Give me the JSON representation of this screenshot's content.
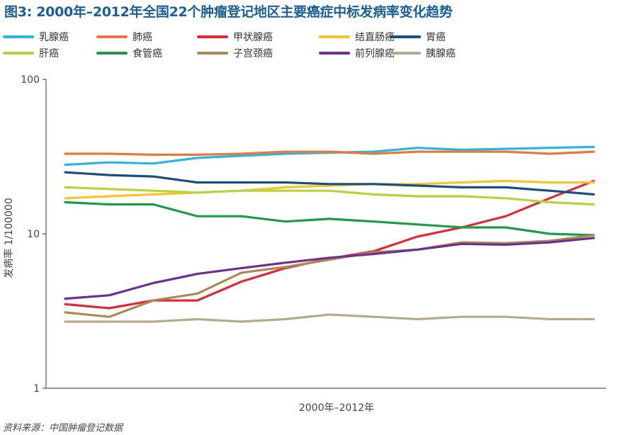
{
  "chart_data": {
    "type": "line",
    "title": "图3: 2000年–2012年全国22个肿瘤登记地区主要癌症中标发病率变化趋势",
    "xlabel": "2000年–2012年",
    "ylabel": "发病率   1/100000",
    "y_scale": "log",
    "ylim": [
      1,
      100
    ],
    "y_ticks": [
      "1",
      "10",
      "100"
    ],
    "x": [
      2000,
      2001,
      2002,
      2003,
      2004,
      2005,
      2006,
      2007,
      2008,
      2009,
      2010,
      2011,
      2012
    ],
    "grid": false,
    "legend_position": "top",
    "source": "资料来源：中国肿瘤登记数据",
    "series": [
      {
        "name": "乳腺癌",
        "color": "#2cb5e3",
        "values": [
          28.0,
          29.0,
          28.5,
          31.0,
          32.0,
          33.0,
          33.5,
          34.0,
          36.0,
          35.0,
          35.5,
          36.0,
          36.5
        ]
      },
      {
        "name": "肺癌",
        "color": "#e8793c",
        "values": [
          33.0,
          33.0,
          32.5,
          32.5,
          33.0,
          34.0,
          34.0,
          33.0,
          34.0,
          34.0,
          34.0,
          33.0,
          34.0
        ]
      },
      {
        "name": "甲状腺癌",
        "color": "#dd2a3a",
        "values": [
          3.5,
          3.3,
          3.7,
          3.7,
          4.9,
          6.0,
          6.9,
          7.7,
          9.6,
          11.0,
          13.0,
          17.0,
          22.0
        ]
      },
      {
        "name": "结直肠癌",
        "color": "#f5c52c",
        "values": [
          17.0,
          17.5,
          18.0,
          18.5,
          19.0,
          20.0,
          20.5,
          21.0,
          21.0,
          21.5,
          22.0,
          21.5,
          21.5
        ]
      },
      {
        "name": "胃癌",
        "color": "#1b4e7e",
        "values": [
          25.0,
          24.0,
          23.5,
          21.5,
          21.5,
          21.5,
          21.0,
          21.0,
          20.5,
          20.0,
          20.0,
          19.0,
          18.0
        ]
      },
      {
        "name": "肝癌",
        "color": "#b8d33a",
        "values": [
          20.0,
          19.5,
          19.0,
          18.5,
          19.0,
          19.0,
          19.0,
          18.0,
          17.5,
          17.5,
          17.0,
          16.0,
          15.5
        ]
      },
      {
        "name": "食管癌",
        "color": "#1a9c4a",
        "values": [
          16.0,
          15.5,
          15.5,
          13.0,
          13.0,
          12.0,
          12.5,
          12.0,
          11.5,
          11.0,
          11.0,
          10.0,
          9.8
        ]
      },
      {
        "name": "子宫颈癌",
        "color": "#a98b52",
        "values": [
          3.1,
          2.9,
          3.7,
          4.1,
          5.6,
          6.1,
          6.8,
          7.6,
          7.9,
          8.8,
          8.7,
          9.0,
          9.8
        ]
      },
      {
        "name": "前列腺癌",
        "color": "#6f2e91",
        "values": [
          3.8,
          4.0,
          4.8,
          5.5,
          6.0,
          6.5,
          7.0,
          7.4,
          7.9,
          8.6,
          8.5,
          8.8,
          9.4
        ]
      },
      {
        "name": "胰腺癌",
        "color": "#b7a98c",
        "values": [
          2.7,
          2.7,
          2.7,
          2.8,
          2.7,
          2.8,
          3.0,
          2.9,
          2.8,
          2.9,
          2.9,
          2.8,
          2.8
        ]
      }
    ]
  }
}
